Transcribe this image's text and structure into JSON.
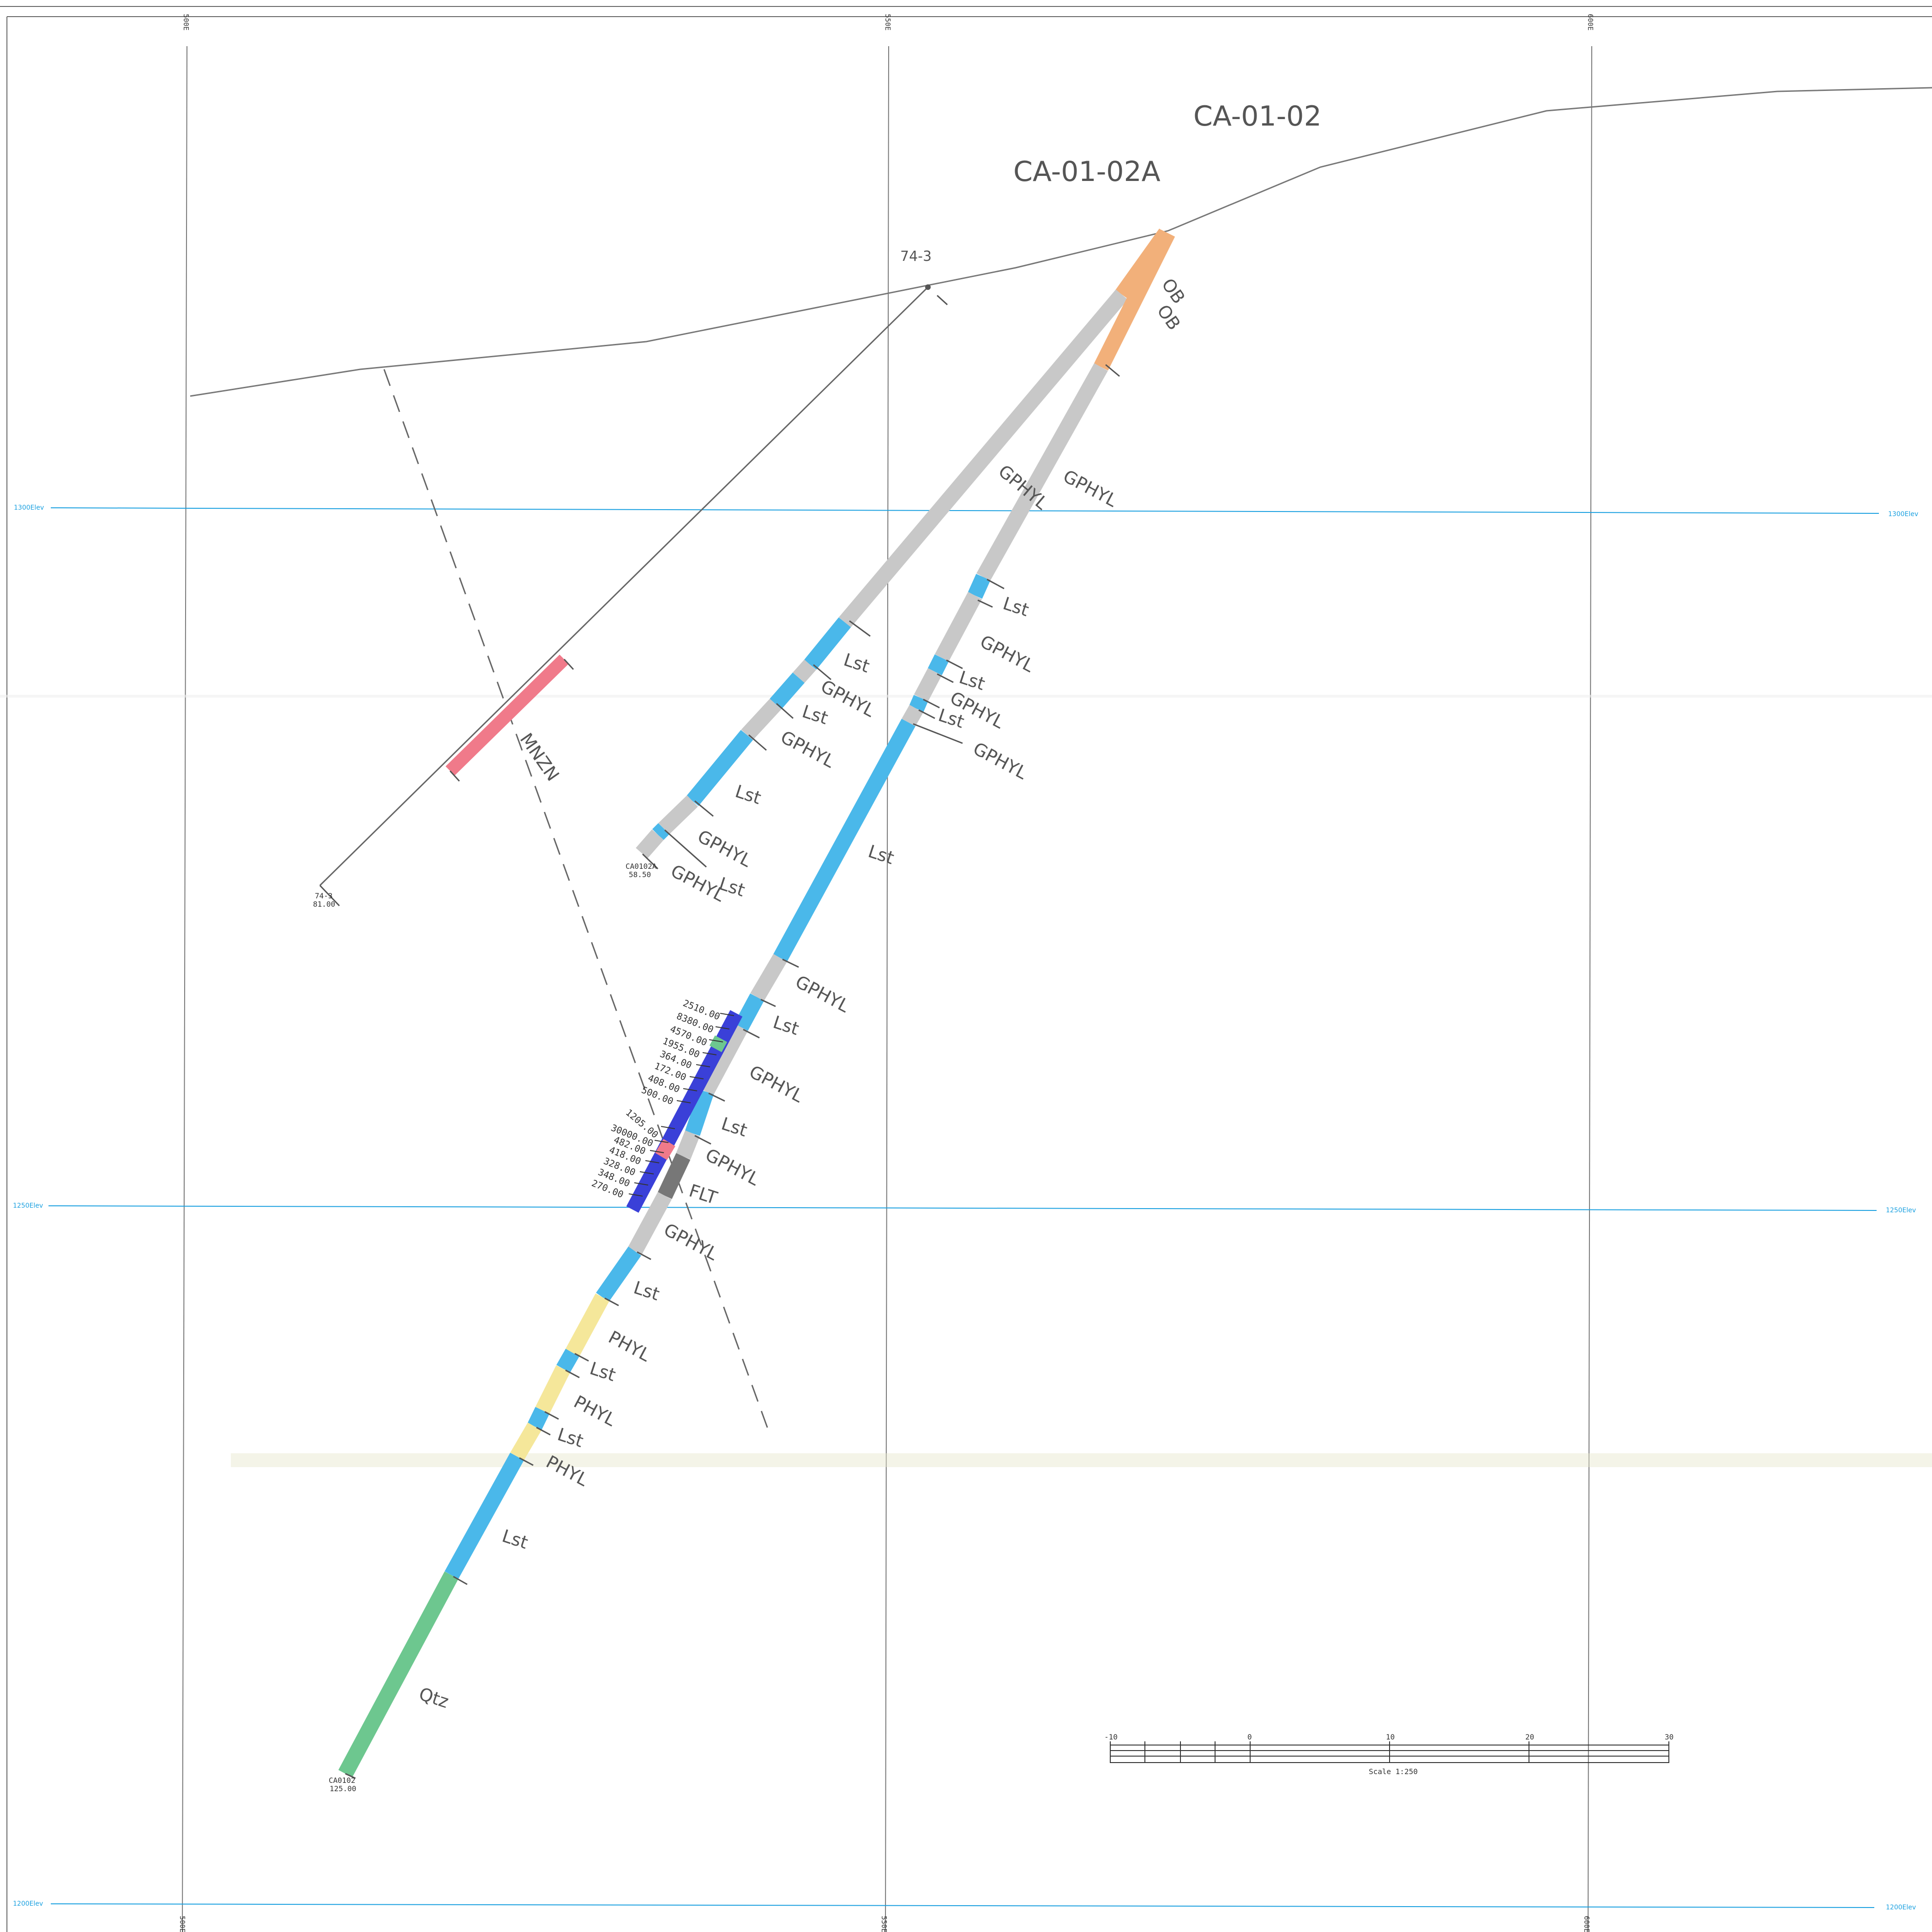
{
  "title_labels": {
    "hole_a": "CA-01-02",
    "hole_b": "CA-01-02A",
    "hole_c": "74-3"
  },
  "elevation_labels": {
    "e1300": "1300Elev",
    "e1250": "1250Elev",
    "e1200": "1200Elev"
  },
  "top_grid_labels": [
    "500E",
    "550E",
    "600E"
  ],
  "bottom_grid_labels": [
    "500E",
    "550E",
    "600E"
  ],
  "colors": {
    "limestone": "#4ab8ea",
    "graphitic_phyllite": "#c8c8c8",
    "phyllite": "#f5e79a",
    "overburden": "#f2b07a",
    "quartz": "#6dc78f",
    "monzonite": "#f07a8a",
    "sample_blue": "#3a40d8",
    "fault": "#777777",
    "elev_line": "#1aa0e0"
  },
  "rock_labels": {
    "ob1": "OB",
    "ob2": "OB",
    "gphyl_a1": "GPHYL",
    "gphyl_b1": "GPHYL",
    "lst_b1": "Lst",
    "gphyl_b2": "GPHYL",
    "lst_b2": "Lst",
    "gphyl_b3": "GPHYL",
    "lst_b3": "Lst",
    "gphyl_b4": "GPHYL",
    "lst_a1": "Lst",
    "gphyl_a2": "GPHYL",
    "lst_a2": "Lst",
    "gphyl_a3": "GPHYL",
    "lst_a3": "Lst",
    "gphyl_a4": "GPHYL",
    "lst_a4": "Lst",
    "gphyl_a5": "GPHYL",
    "lst_big": "Lst",
    "gphyl_c1": "GPHYL",
    "lst_c1": "Lst",
    "gphyl_c2": "GPHYL",
    "lst_c2": "Lst",
    "gphyl_c3": "GPHYL",
    "flt": "FLT",
    "gphyl_c4": "GPHYL",
    "lst_c3": "Lst",
    "phyl1": "PHYL",
    "lst_c4": "Lst",
    "phyl2": "PHYL",
    "lst_c5": "Lst",
    "phyl3": "PHYL",
    "lst_c6": "Lst",
    "qtz": "Qtz",
    "mnzn": "MNZN"
  },
  "end_labels": {
    "a_id": "CA0102A",
    "a_depth": "58.50",
    "c_id": "74-3",
    "c_depth": "81.00",
    "b_id": "CA0102",
    "b_depth": "125.00"
  },
  "assays": [
    "2510.00",
    "8380.00",
    "4570.00",
    "1955.00",
    "364.00",
    "172.00",
    "408.00",
    "500.00",
    "1205.00",
    "30000.00",
    "482.00",
    "418.00",
    "328.00",
    "348.00",
    "270.00"
  ],
  "scale_bar": {
    "ticks": [
      "-10",
      "0",
      "10",
      "20",
      "30"
    ],
    "caption": "Scale 1:250"
  }
}
